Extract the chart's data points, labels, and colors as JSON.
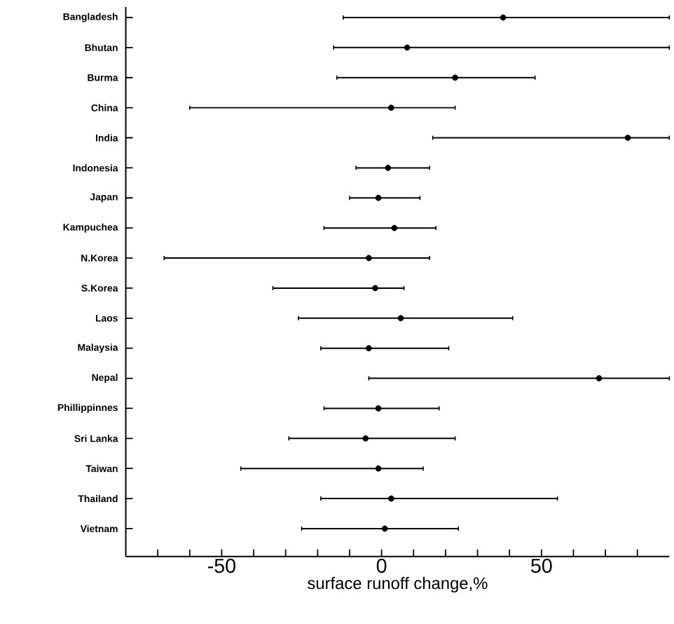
{
  "chart_data": {
    "type": "scatter",
    "orientation": "horizontal",
    "xlabel": "surface runoff change,%",
    "categories": [
      "Bangladesh",
      "Bhutan",
      "Burma",
      "China",
      "India",
      "Indonesia",
      "Japan",
      "Kampuchea",
      "N.Korea",
      "S.Korea",
      "Laos",
      "Malaysia",
      "Nepal",
      "Phillippinnes",
      "Sri Lanka",
      "Taiwan",
      "Thailand",
      "Vietnam"
    ],
    "values": [
      38,
      8,
      23,
      3,
      77,
      2,
      -1,
      4,
      -4,
      -2,
      6,
      -4,
      68,
      -1,
      -5,
      -1,
      3,
      1
    ],
    "errors": [
      [
        -12,
        90
      ],
      [
        -15,
        90
      ],
      [
        -14,
        48
      ],
      [
        -60,
        23
      ],
      [
        16,
        90
      ],
      [
        -8,
        15
      ],
      [
        -10,
        12
      ],
      [
        -18,
        17
      ],
      [
        -68,
        15
      ],
      [
        -34,
        7
      ],
      [
        -26,
        41
      ],
      [
        -19,
        21
      ],
      [
        -4,
        90
      ],
      [
        -18,
        18
      ],
      [
        -29,
        23
      ],
      [
        -44,
        13
      ],
      [
        -19,
        55
      ],
      [
        -25,
        24
      ]
    ],
    "color": "#000000",
    "grid": false,
    "xlim": [
      -80,
      90
    ],
    "xticks": [
      {
        "value": -70,
        "label": null
      },
      {
        "value": -60,
        "label": null
      },
      -50,
      {
        "value": -40,
        "label": null
      },
      {
        "value": -30,
        "label": null
      },
      {
        "value": -20,
        "label": null
      },
      {
        "value": -10,
        "label": null
      },
      0,
      {
        "value": 10,
        "label": null
      },
      {
        "value": 20,
        "label": null
      },
      {
        "value": 30,
        "label": null
      },
      {
        "value": 40,
        "label": null
      },
      50,
      {
        "value": 60,
        "label": null
      },
      {
        "value": 70,
        "label": null
      },
      {
        "value": 80,
        "label": null
      }
    ]
  }
}
